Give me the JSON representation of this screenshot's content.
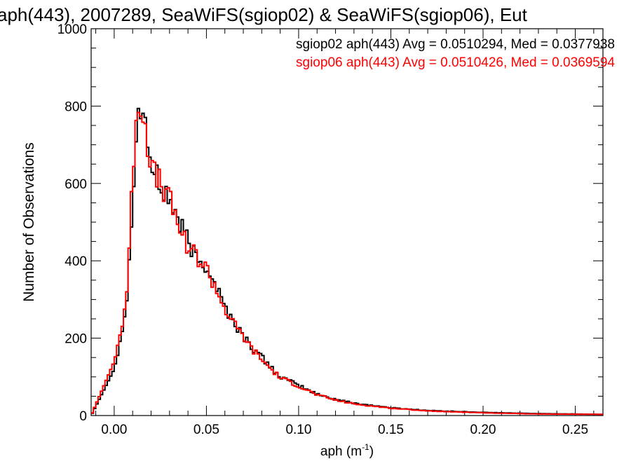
{
  "chart_data": {
    "type": "histogram",
    "title": "aph(443), 2007289, SeaWiFS(sgiop02) & SeaWiFS(sgiop06), Eut",
    "xlabel": "aph (m",
    "xlabel_sup": "-1",
    "xlabel_end": ")",
    "ylabel": "Number of Observations",
    "xlim": [
      -0.0125,
      0.265
    ],
    "ylim": [
      0,
      1000
    ],
    "xticks": [
      0.0,
      0.05,
      0.1,
      0.15,
      0.2,
      0.25
    ],
    "xtick_labels": [
      "0.00",
      "0.05",
      "0.10",
      "0.15",
      "0.20",
      "0.25"
    ],
    "yticks": [
      0,
      200,
      400,
      600,
      800,
      1000
    ],
    "ytick_labels": [
      "0",
      "200",
      "400",
      "600",
      "800",
      "1000"
    ],
    "bin_width": 0.00125,
    "series": [
      {
        "name": "sgiop02",
        "color": "#000000",
        "stats_label": "sgiop02 aph(443) Avg = 0.0510294, Med = 0.0377938",
        "x": [
          -0.0125,
          0.0,
          0.005,
          0.0075,
          0.01,
          0.0125,
          0.015,
          0.0175,
          0.02,
          0.0225,
          0.025,
          0.03,
          0.035,
          0.04,
          0.045,
          0.05,
          0.055,
          0.06,
          0.065,
          0.07,
          0.075,
          0.08,
          0.085,
          0.09,
          0.1,
          0.11,
          0.12,
          0.13,
          0.15,
          0.17,
          0.2,
          0.23,
          0.265
        ],
        "y": [
          0,
          120,
          240,
          330,
          580,
          770,
          800,
          740,
          640,
          620,
          590,
          560,
          500,
          450,
          400,
          390,
          340,
          280,
          240,
          205,
          175,
          150,
          125,
          100,
          78,
          55,
          42,
          32,
          20,
          13,
          8,
          5,
          3
        ]
      },
      {
        "name": "sgiop06",
        "color": "#ff0000",
        "stats_label": "sgiop06 aph(443) Avg = 0.0510426, Med = 0.0369594",
        "x": [
          -0.0125,
          0.0,
          0.005,
          0.0075,
          0.01,
          0.0125,
          0.015,
          0.0175,
          0.02,
          0.0225,
          0.025,
          0.03,
          0.035,
          0.04,
          0.045,
          0.05,
          0.055,
          0.06,
          0.065,
          0.07,
          0.075,
          0.08,
          0.085,
          0.09,
          0.1,
          0.11,
          0.12,
          0.13,
          0.15,
          0.17,
          0.2,
          0.23,
          0.265
        ],
        "y": [
          0,
          140,
          250,
          350,
          620,
          830,
          790,
          730,
          650,
          610,
          600,
          555,
          490,
          440,
          410,
          380,
          330,
          275,
          235,
          205,
          170,
          145,
          120,
          98,
          76,
          53,
          40,
          30,
          19,
          12,
          7,
          4,
          3
        ]
      }
    ]
  }
}
